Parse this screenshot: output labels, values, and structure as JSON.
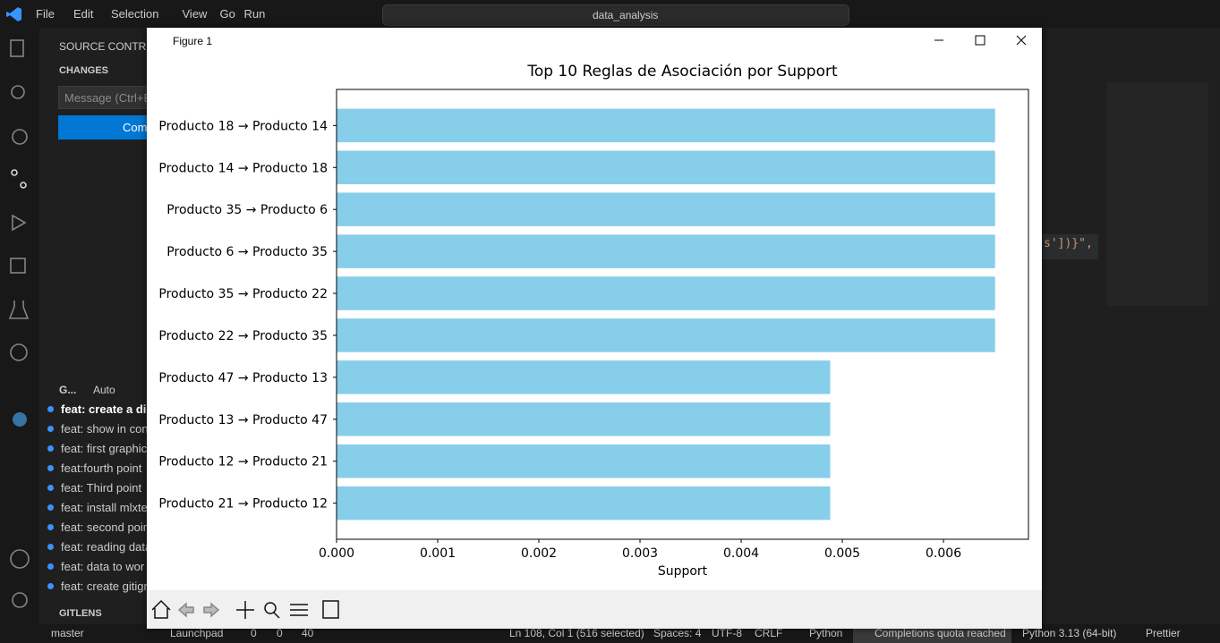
{
  "app": {
    "menu": [
      "File",
      "Edit",
      "Selection",
      "View",
      "Go",
      "Run"
    ],
    "search": "data_analysis",
    "editor_fragment": "s'])}\","
  },
  "sidebar": {
    "title": "SOURCE CONTROL",
    "changes": "CHANGES",
    "message": "Message (Ctrl+E",
    "commit": "Com",
    "graph_header": "G...",
    "graph_mode": "Auto",
    "commits": [
      "feat: create a dis",
      "feat: show in con",
      "feat: first graphic",
      "feat:fourth point",
      "feat: Third point",
      "feat: install mlxte",
      "feat: second poin",
      "feat: reading data",
      "feat: data to wor",
      "feat: create gitign"
    ],
    "gitlens": "GITLENS"
  },
  "status": {
    "branch": "master",
    "launchpad": "Launchpad",
    "errors": "0",
    "warnings": "0",
    "ports": "40",
    "position": "Ln 108, Col 1 (516 selected)",
    "spaces": "Spaces: 4",
    "encoding": "UTF-8",
    "eol": "CRLF",
    "language": "Python",
    "quota": "Completions quota reached",
    "interpreter": "Python 3.13 (64-bit)",
    "formatter": "Prettier"
  },
  "figure": {
    "window_title": "Figure 1"
  },
  "chart_data": {
    "type": "barh",
    "title": "Top 10 Reglas de Asociación por Support",
    "xlabel": "Support",
    "categories": [
      "Producto 18 → Producto 14",
      "Producto 14 → Producto 18",
      "Producto 35 → Producto 6",
      "Producto 6 → Producto 35",
      "Producto 35 → Producto 22",
      "Producto 22 → Producto 35",
      "Producto 47 → Producto 13",
      "Producto 13 → Producto 47",
      "Producto 12 → Producto 21",
      "Producto 21 → Producto 12"
    ],
    "values": [
      0.00651,
      0.00651,
      0.00651,
      0.00651,
      0.00651,
      0.00651,
      0.00488,
      0.00488,
      0.00488,
      0.00488
    ],
    "color": "#87ceeb",
    "xlim": [
      0,
      0.00684
    ],
    "xticks": [
      {
        "value": 0,
        "label": "0.000"
      },
      {
        "value": 0.001,
        "label": "0.001"
      },
      {
        "value": 0.002,
        "label": "0.002"
      },
      {
        "value": 0.003,
        "label": "0.003"
      },
      {
        "value": 0.004,
        "label": "0.004"
      },
      {
        "value": 0.005,
        "label": "0.005"
      },
      {
        "value": 0.006,
        "label": "0.006"
      }
    ]
  }
}
